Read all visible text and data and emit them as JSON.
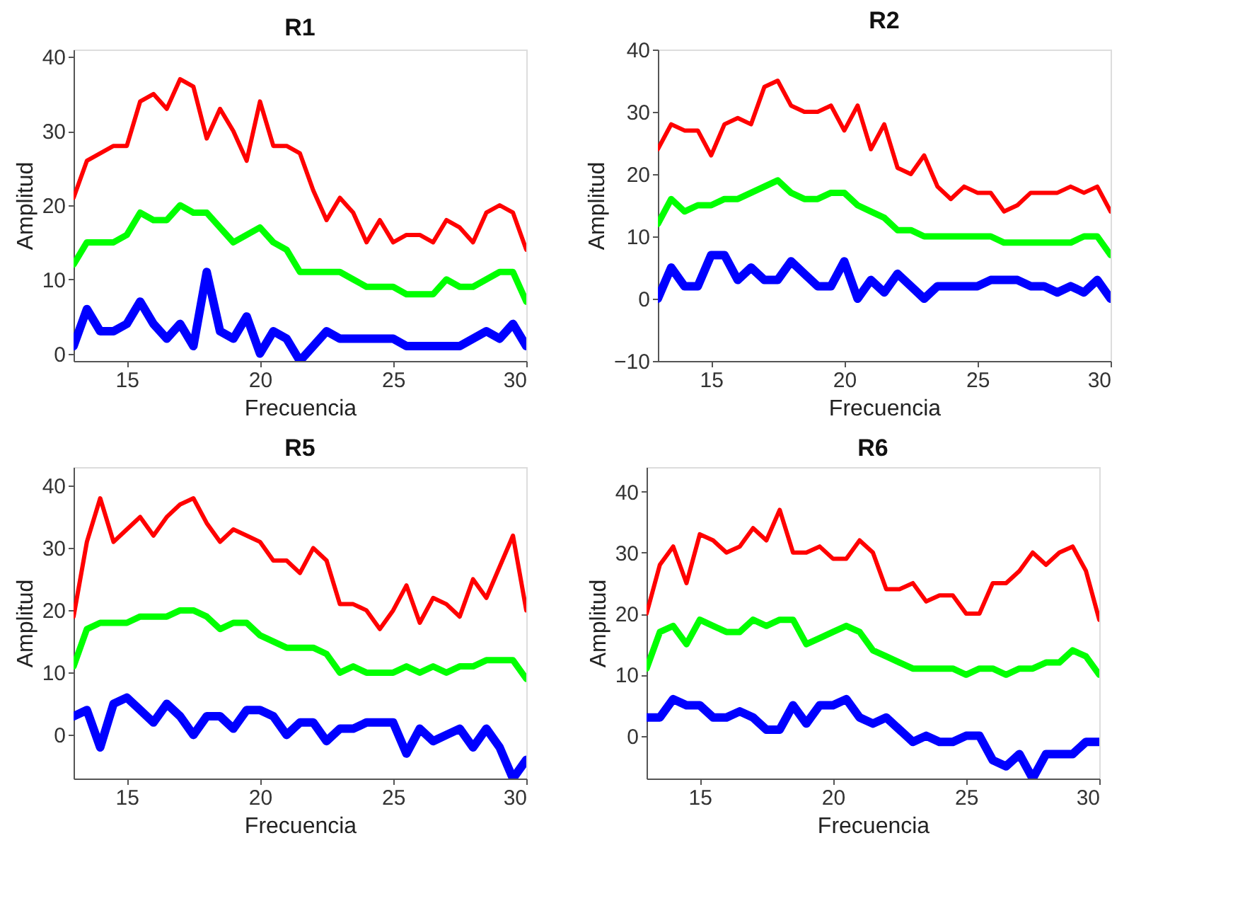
{
  "chart_data": [
    {
      "type": "line",
      "title": "R1",
      "xlabel": "Frecuencia",
      "ylabel": "Amplitud",
      "x": [
        13,
        13.5,
        14,
        14.5,
        15,
        15.5,
        16,
        16.5,
        17,
        17.5,
        18,
        18.5,
        19,
        19.5,
        20,
        20.5,
        21,
        21.5,
        22,
        22.5,
        23,
        23.5,
        24,
        24.5,
        25,
        25.5,
        26,
        26.5,
        27,
        27.5,
        28,
        28.5,
        29,
        29.5,
        30
      ],
      "series": [
        {
          "color": "#ff0000",
          "values": [
            21,
            26,
            27,
            28,
            28,
            34,
            35,
            33,
            37,
            36,
            29,
            33,
            30,
            26,
            34,
            28,
            28,
            27,
            22,
            18,
            21,
            19,
            15,
            18,
            15,
            16,
            16,
            15,
            18,
            17,
            15,
            19,
            20,
            19,
            14
          ]
        },
        {
          "color": "#00ff00",
          "values": [
            12,
            15,
            15,
            15,
            16,
            19,
            18,
            18,
            20,
            19,
            19,
            17,
            15,
            16,
            17,
            15,
            14,
            11,
            11,
            11,
            11,
            10,
            9,
            9,
            9,
            8,
            8,
            8,
            10,
            9,
            9,
            10,
            11,
            11,
            7
          ]
        },
        {
          "color": "#0000ff",
          "values": [
            1,
            6,
            3,
            3,
            4,
            7,
            4,
            2,
            4,
            1,
            11,
            3,
            2,
            5,
            0,
            3,
            2,
            -1,
            1,
            3,
            2,
            2,
            2,
            2,
            2,
            1,
            1,
            1,
            1,
            1,
            2,
            3,
            2,
            4,
            1
          ]
        }
      ],
      "xlim": [
        13,
        30
      ],
      "ylim": [
        -1,
        41
      ],
      "xticks": [
        15,
        20,
        25,
        30
      ],
      "yticks": [
        0,
        10,
        20,
        30,
        40
      ],
      "grid": false
    },
    {
      "type": "line",
      "title": "R2",
      "xlabel": "Frecuencia",
      "ylabel": "Amplitud",
      "x": [
        13,
        13.5,
        14,
        14.5,
        15,
        15.5,
        16,
        16.5,
        17,
        17.5,
        18,
        18.5,
        19,
        19.5,
        20,
        20.5,
        21,
        21.5,
        22,
        22.5,
        23,
        23.5,
        24,
        24.5,
        25,
        25.5,
        26,
        26.5,
        27,
        27.5,
        28,
        28.5,
        29,
        29.5,
        30
      ],
      "series": [
        {
          "color": "#ff0000",
          "values": [
            24,
            28,
            27,
            27,
            23,
            28,
            29,
            28,
            34,
            35,
            31,
            30,
            30,
            31,
            27,
            31,
            24,
            28,
            21,
            20,
            23,
            18,
            16,
            18,
            17,
            17,
            14,
            15,
            17,
            17,
            17,
            18,
            17,
            18,
            14
          ]
        },
        {
          "color": "#00ff00",
          "values": [
            12,
            16,
            14,
            15,
            15,
            16,
            16,
            17,
            18,
            19,
            17,
            16,
            16,
            17,
            17,
            15,
            14,
            13,
            11,
            11,
            10,
            10,
            10,
            10,
            10,
            10,
            9,
            9,
            9,
            9,
            9,
            9,
            10,
            10,
            7
          ]
        },
        {
          "color": "#0000ff",
          "values": [
            0,
            5,
            2,
            2,
            7,
            7,
            3,
            5,
            3,
            3,
            6,
            4,
            2,
            2,
            6,
            0,
            3,
            1,
            4,
            2,
            0,
            2,
            2,
            2,
            2,
            3,
            3,
            3,
            2,
            2,
            1,
            2,
            1,
            3,
            0
          ]
        }
      ],
      "xlim": [
        13,
        30
      ],
      "ylim": [
        -10,
        40
      ],
      "xticks": [
        15,
        20,
        25,
        30
      ],
      "yticks": [
        -10,
        0,
        10,
        20,
        30,
        40
      ],
      "grid": false
    },
    {
      "type": "line",
      "title": "R5",
      "xlabel": "Frecuencia",
      "ylabel": "Amplitud",
      "x": [
        13,
        13.5,
        14,
        14.5,
        15,
        15.5,
        16,
        16.5,
        17,
        17.5,
        18,
        18.5,
        19,
        19.5,
        20,
        20.5,
        21,
        21.5,
        22,
        22.5,
        23,
        23.5,
        24,
        24.5,
        25,
        25.5,
        26,
        26.5,
        27,
        27.5,
        28,
        28.5,
        29,
        29.5,
        30
      ],
      "series": [
        {
          "color": "#ff0000",
          "values": [
            19,
            31,
            38,
            31,
            33,
            35,
            32,
            35,
            37,
            38,
            34,
            31,
            33,
            32,
            31,
            28,
            28,
            26,
            30,
            28,
            21,
            21,
            20,
            17,
            20,
            24,
            18,
            22,
            21,
            19,
            25,
            22,
            27,
            32,
            20
          ]
        },
        {
          "color": "#00ff00",
          "values": [
            11,
            17,
            18,
            18,
            18,
            19,
            19,
            19,
            20,
            20,
            19,
            17,
            18,
            18,
            16,
            15,
            14,
            14,
            14,
            13,
            10,
            11,
            10,
            10,
            10,
            11,
            10,
            11,
            10,
            11,
            11,
            12,
            12,
            12,
            9
          ]
        },
        {
          "color": "#0000ff",
          "values": [
            3,
            4,
            -2,
            5,
            6,
            4,
            2,
            5,
            3,
            0,
            3,
            3,
            1,
            4,
            4,
            3,
            0,
            2,
            2,
            -1,
            1,
            1,
            2,
            2,
            2,
            -3,
            1,
            -1,
            0,
            1,
            -2,
            1,
            -2,
            -7,
            -4
          ]
        }
      ],
      "xlim": [
        13,
        30
      ],
      "ylim": [
        -7,
        43
      ],
      "xticks": [
        15,
        20,
        25,
        30
      ],
      "yticks": [
        0,
        10,
        20,
        30,
        40
      ],
      "grid": false
    },
    {
      "type": "line",
      "title": "R6",
      "xlabel": "Frecuencia",
      "ylabel": "Amplitud",
      "x": [
        13,
        13.5,
        14,
        14.5,
        15,
        15.5,
        16,
        16.5,
        17,
        17.5,
        18,
        18.5,
        19,
        19.5,
        20,
        20.5,
        21,
        21.5,
        22,
        22.5,
        23,
        23.5,
        24,
        24.5,
        25,
        25.5,
        26,
        26.5,
        27,
        27.5,
        28,
        28.5,
        29,
        29.5,
        30
      ],
      "series": [
        {
          "color": "#ff0000",
          "values": [
            20,
            28,
            31,
            25,
            33,
            32,
            30,
            31,
            34,
            32,
            37,
            30,
            30,
            31,
            29,
            29,
            32,
            30,
            24,
            24,
            25,
            22,
            23,
            23,
            20,
            20,
            25,
            25,
            27,
            30,
            28,
            30,
            31,
            27,
            19
          ]
        },
        {
          "color": "#00ff00",
          "values": [
            11,
            17,
            18,
            15,
            19,
            18,
            17,
            17,
            19,
            18,
            19,
            19,
            15,
            16,
            17,
            18,
            17,
            14,
            13,
            12,
            11,
            11,
            11,
            11,
            10,
            11,
            11,
            10,
            11,
            11,
            12,
            12,
            14,
            13,
            10
          ]
        },
        {
          "color": "#0000ff",
          "values": [
            3,
            3,
            6,
            5,
            5,
            3,
            3,
            4,
            3,
            1,
            1,
            5,
            2,
            5,
            5,
            6,
            3,
            2,
            3,
            1,
            -1,
            0,
            -1,
            -1,
            0,
            0,
            -4,
            -5,
            -3,
            -7,
            -3,
            -3,
            -3,
            -1,
            -1
          ]
        }
      ],
      "xlim": [
        13,
        30
      ],
      "ylim": [
        -7,
        44
      ],
      "xticks": [
        15,
        20,
        25,
        30
      ],
      "yticks": [
        0,
        10,
        20,
        30,
        40
      ],
      "grid": false
    }
  ]
}
